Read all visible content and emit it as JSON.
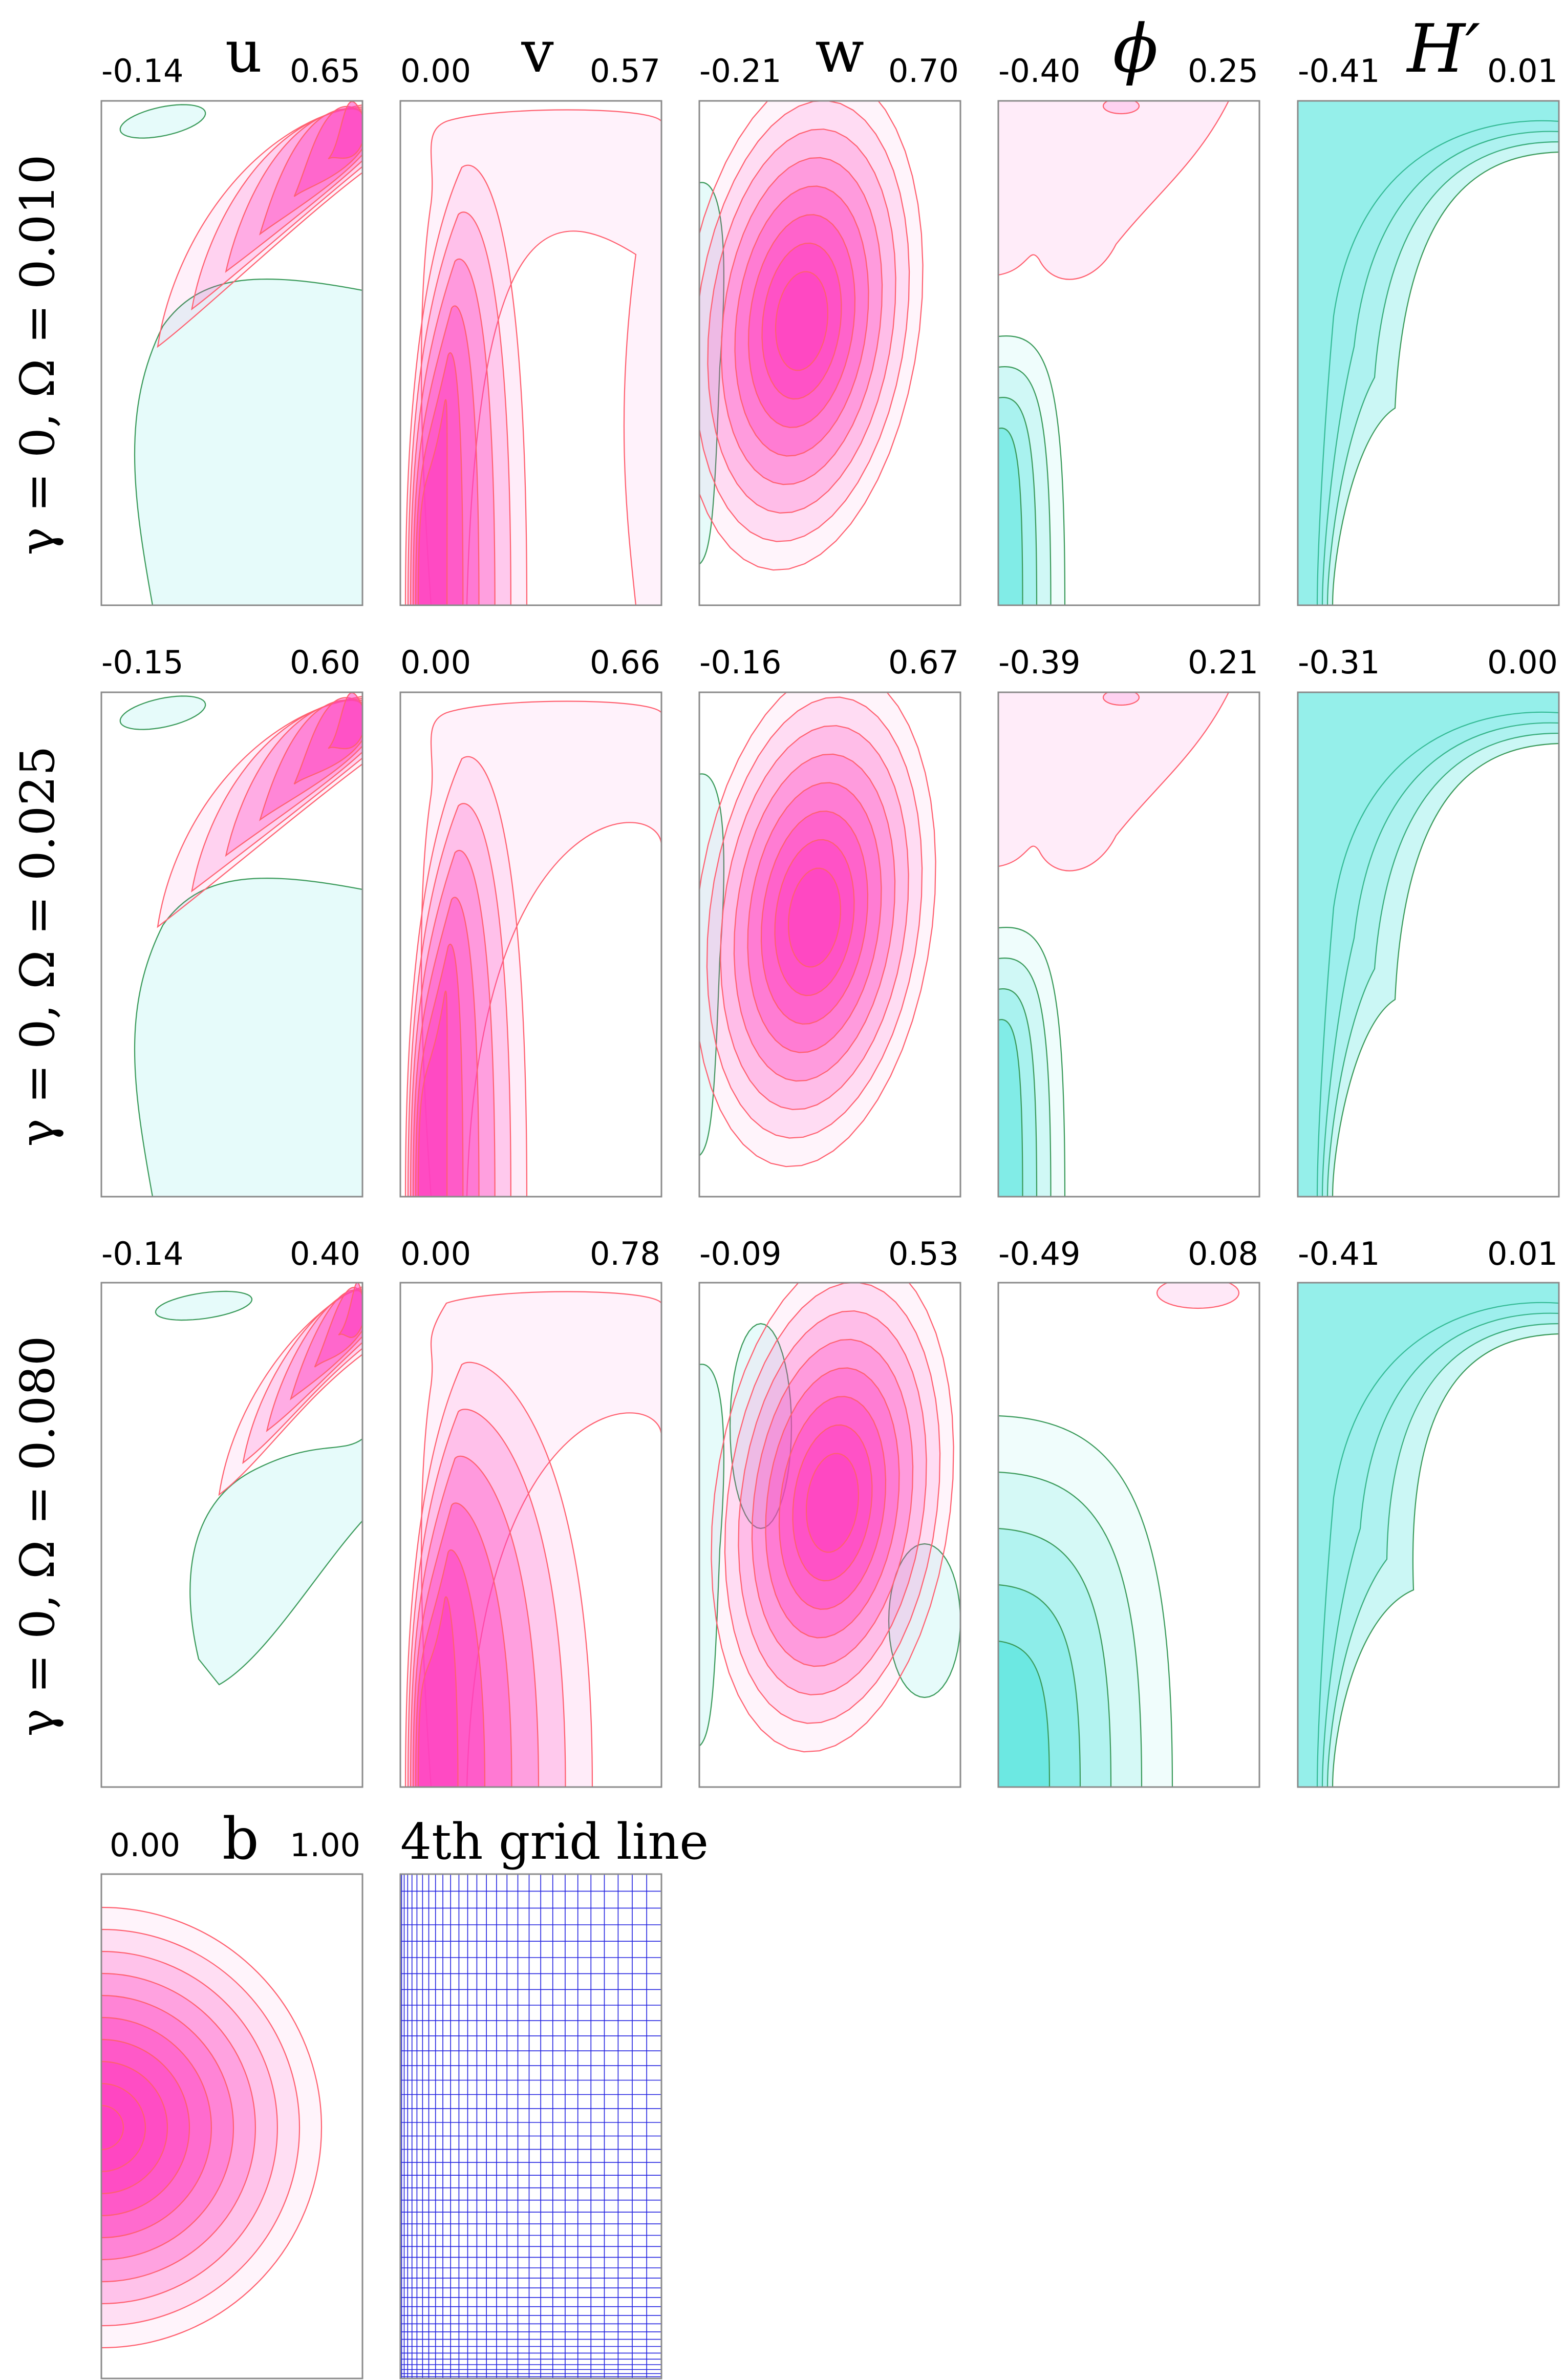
{
  "chart_data": {
    "type": "contour",
    "column_titles": [
      "u",
      "v",
      "w",
      "ϕ",
      "H′"
    ],
    "row_labels": [
      "γ = 0, Ω = 0.010",
      "γ = 0, Ω = 0.025",
      "γ = 0, Ω = 0.080"
    ],
    "ranges": [
      [
        [
          "-0.14",
          "0.65"
        ],
        [
          "0.00",
          "0.57"
        ],
        [
          "-0.21",
          "0.70"
        ],
        [
          "-0.40",
          "0.25"
        ],
        [
          "-0.41",
          "0.01"
        ]
      ],
      [
        [
          "-0.15",
          "0.60"
        ],
        [
          "0.00",
          "0.66"
        ],
        [
          "-0.16",
          "0.67"
        ],
        [
          "-0.39",
          "0.21"
        ],
        [
          "-0.31",
          "0.00"
        ]
      ],
      [
        [
          "-0.14",
          "0.40"
        ],
        [
          "0.00",
          "0.78"
        ],
        [
          "-0.09",
          "0.53"
        ],
        [
          "-0.49",
          "0.08"
        ],
        [
          "-0.41",
          "0.01"
        ]
      ]
    ],
    "bottom_panels": {
      "b": {
        "title": "b",
        "min": "0.00",
        "max": "1.00"
      },
      "grid": {
        "title": "4th grid line"
      }
    },
    "colors": {
      "positive": "#ff40c0",
      "negative": "#30e0d8",
      "pos_line": "#ff6070",
      "neg_line": "#3a9a5a",
      "grid_line": "#2020e0",
      "frame": "#8a8a8a"
    }
  }
}
